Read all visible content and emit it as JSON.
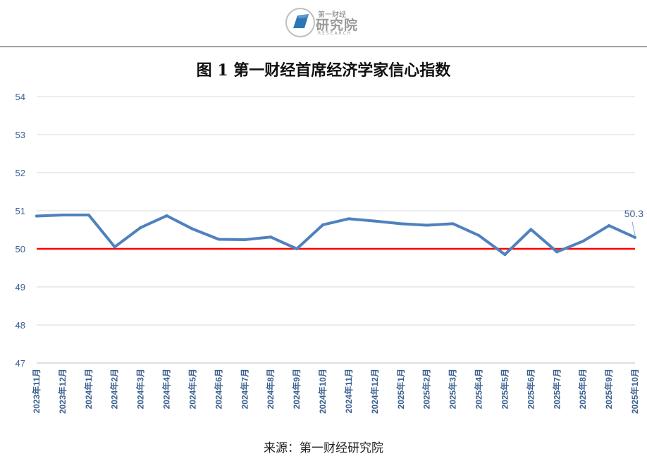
{
  "header": {
    "logo_top": "第一财经",
    "logo_main": "研究院",
    "logo_sub": "RESEARCH"
  },
  "title": "图 1  第一财经首席经济学家信心指数",
  "source": "来源：第一财经研究院",
  "colors": {
    "line": "#4f81bd",
    "reference": "#ff0000",
    "axis_text": "#3a5f8f",
    "grid": "#d9d9d9"
  },
  "chart_data": {
    "type": "line",
    "title": "第一财经首席经济学家信心指数",
    "xlabel": "",
    "ylabel": "",
    "ylim": [
      47,
      54
    ],
    "yticks": [
      "47",
      "48",
      "49",
      "50",
      "51",
      "52",
      "53",
      "54"
    ],
    "grid": true,
    "categories": [
      "2023年11月",
      "2023年12月",
      "2024年1月",
      "2024年2月",
      "2024年3月",
      "2024年4月",
      "2024年5月",
      "2024年6月",
      "2024年7月",
      "2024年8月",
      "2024年9月",
      "2024年10月",
      "2024年11月",
      "2024年12月",
      "2025年1月",
      "2025年2月",
      "2025年3月",
      "2025年4月",
      "2025年5月",
      "2025年6月",
      "2025年7月",
      "2025年8月",
      "2025年9月",
      "2025年10月"
    ],
    "series": [
      {
        "values": [
          50.86,
          50.89,
          50.89,
          50.05,
          50.56,
          50.87,
          50.52,
          50.25,
          50.24,
          50.31,
          50.0,
          50.63,
          50.79,
          50.73,
          50.66,
          50.62,
          50.66,
          50.35,
          49.85,
          50.51,
          49.92,
          50.2,
          50.61,
          50.3
        ]
      }
    ],
    "reference_line": 50,
    "annotations": [
      {
        "index": 23,
        "text": "50.3"
      }
    ]
  }
}
